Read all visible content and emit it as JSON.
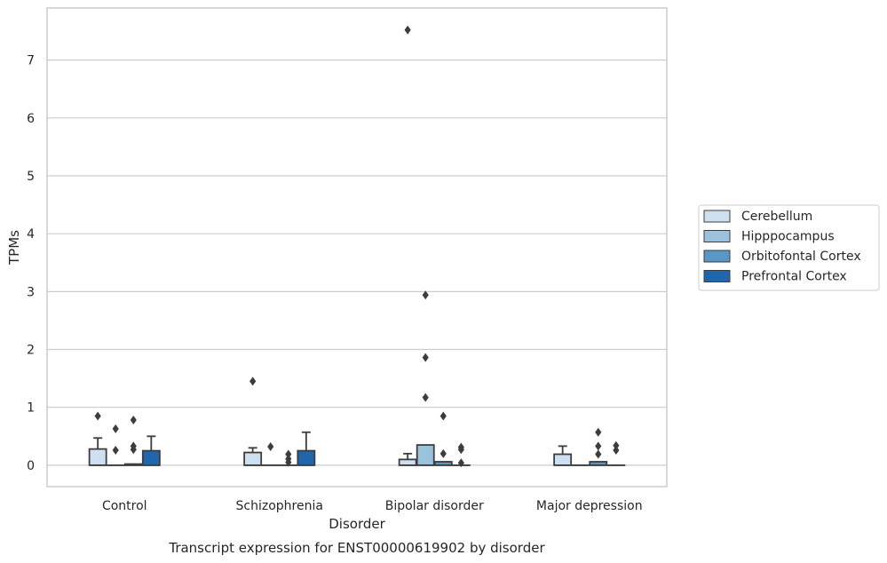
{
  "chart_data": {
    "type": "boxplot",
    "title": "",
    "caption": "Transcript expression for ENST00000619902 by disorder",
    "xlabel": "Disorder",
    "ylabel": "TPMs",
    "categories": [
      "Control",
      "Schizophrenia",
      "Bipolar disorder",
      "Major depression"
    ],
    "yticks": [
      0,
      1,
      2,
      3,
      4,
      5,
      6,
      7
    ],
    "ylim": [
      -0.37,
      7.9
    ],
    "grid": true,
    "legend_position": "right",
    "series": [
      {
        "name": "Cerebellum",
        "color": "#cddff0",
        "boxes": [
          {
            "q1": 0,
            "median": 0,
            "q3": 0.28,
            "whisker_low": 0,
            "whisker_high": 0.47,
            "outliers": [
              0.85
            ]
          },
          {
            "q1": 0,
            "median": 0,
            "q3": 0.22,
            "whisker_low": 0,
            "whisker_high": 0.3,
            "outliers": [
              1.45
            ]
          },
          {
            "q1": 0,
            "median": 0,
            "q3": 0.1,
            "whisker_low": 0,
            "whisker_high": 0.2,
            "outliers": [
              7.52
            ]
          },
          {
            "q1": 0,
            "median": 0,
            "q3": 0.19,
            "whisker_low": 0,
            "whisker_high": 0.33,
            "outliers": []
          }
        ]
      },
      {
        "name": "Hipppocampus",
        "color": "#9ac2dd",
        "boxes": [
          {
            "q1": 0,
            "median": 0,
            "q3": 0,
            "whisker_low": 0,
            "whisker_high": 0,
            "outliers": [
              0.63,
              0.26
            ]
          },
          {
            "q1": 0,
            "median": 0,
            "q3": 0,
            "whisker_low": 0,
            "whisker_high": 0,
            "outliers": [
              0.32
            ]
          },
          {
            "q1": 0,
            "median": 0,
            "q3": 0.35,
            "whisker_low": 0,
            "whisker_high": 0.35,
            "outliers": [
              1.17,
              1.86,
              2.94
            ]
          },
          {
            "q1": 0,
            "median": 0,
            "q3": 0,
            "whisker_low": 0,
            "whisker_high": 0,
            "outliers": []
          }
        ]
      },
      {
        "name": "Orbitofontal Cortex",
        "color": "#5897c6",
        "boxes": [
          {
            "q1": 0,
            "median": 0,
            "q3": 0.02,
            "whisker_low": 0,
            "whisker_high": 0.02,
            "outliers": [
              0.78,
              0.33,
              0.27
            ]
          },
          {
            "q1": 0,
            "median": 0,
            "q3": 0,
            "whisker_low": 0,
            "whisker_high": 0,
            "outliers": [
              0.19,
              0.11,
              0.05
            ]
          },
          {
            "q1": 0,
            "median": 0,
            "q3": 0.06,
            "whisker_low": 0,
            "whisker_high": 0.06,
            "outliers": [
              0.85,
              0.2
            ]
          },
          {
            "q1": 0,
            "median": 0,
            "q3": 0.06,
            "whisker_low": 0,
            "whisker_high": 0.06,
            "outliers": [
              0.57,
              0.33,
              0.19
            ]
          }
        ]
      },
      {
        "name": "Prefrontal Cortex",
        "color": "#2165aa",
        "boxes": [
          {
            "q1": 0,
            "median": 0,
            "q3": 0.25,
            "whisker_low": 0,
            "whisker_high": 0.5,
            "outliers": []
          },
          {
            "q1": 0,
            "median": 0,
            "q3": 0.25,
            "whisker_low": 0,
            "whisker_high": 0.57,
            "outliers": []
          },
          {
            "q1": 0,
            "median": 0,
            "q3": 0,
            "whisker_low": 0,
            "whisker_high": 0,
            "outliers": [
              0.31,
              0.27,
              0.04
            ]
          },
          {
            "q1": 0,
            "median": 0,
            "q3": 0,
            "whisker_low": 0,
            "whisker_high": 0,
            "outliers": [
              0.34,
              0.26
            ]
          }
        ]
      }
    ]
  }
}
